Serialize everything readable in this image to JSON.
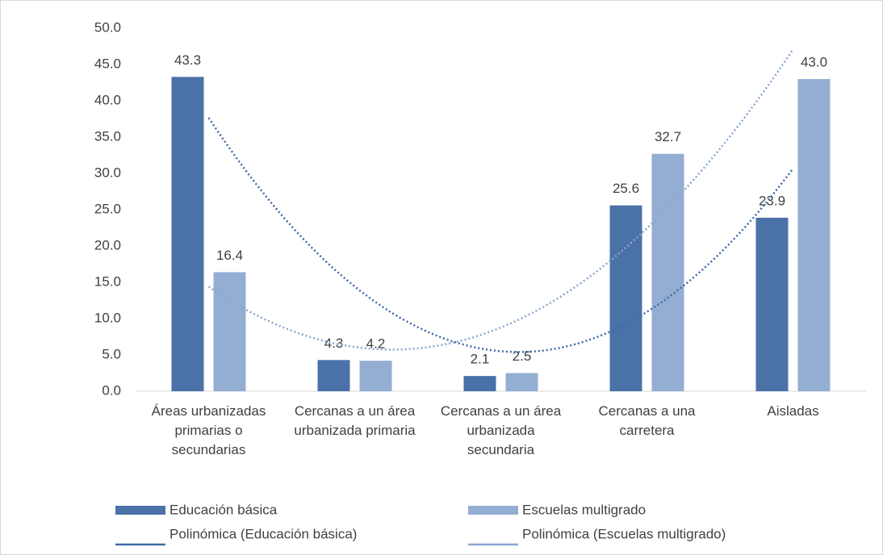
{
  "chart_data": {
    "type": "bar",
    "categories": [
      "Áreas urbanizadas primarias o secundarias",
      "Cercanas a un área urbanizada primaria",
      "Cercanas a un área urbanizada secundaria",
      "Cercanas a una carretera",
      "Aisladas"
    ],
    "series": [
      {
        "name": "Educación básica",
        "color": "#4a72a8",
        "values": [
          43.3,
          4.3,
          2.1,
          25.6,
          23.9
        ],
        "value_labels": [
          "43.3",
          "4.3",
          "2.1",
          "25.6",
          "23.9"
        ]
      },
      {
        "name": "Escuelas multigrado",
        "color": "#94aed3",
        "values": [
          16.4,
          4.2,
          2.5,
          32.7,
          43.0
        ],
        "value_labels": [
          "16.4",
          "4.2",
          "2.5",
          "32.7",
          "43.0"
        ]
      }
    ],
    "trendlines": [
      {
        "name": "Polinómica (Educación básica)",
        "color": "#3f6aa6"
      },
      {
        "name": "Polinómica (Escuelas multigrado)",
        "color": "#8aa6d0"
      }
    ],
    "ylim": [
      0,
      50
    ],
    "yticks": [
      {
        "value": 0,
        "label": "0.0"
      },
      {
        "value": 5,
        "label": "5.0"
      },
      {
        "value": 10,
        "label": "10.0"
      },
      {
        "value": 15,
        "label": "15.0"
      },
      {
        "value": 20,
        "label": "20.0"
      },
      {
        "value": 25,
        "label": "25.0"
      },
      {
        "value": 30,
        "label": "30.0"
      },
      {
        "value": 35,
        "label": "35.0"
      },
      {
        "value": 40,
        "label": "40.0"
      },
      {
        "value": 45,
        "label": "45.0"
      },
      {
        "value": 50,
        "label": "50.0"
      }
    ]
  }
}
